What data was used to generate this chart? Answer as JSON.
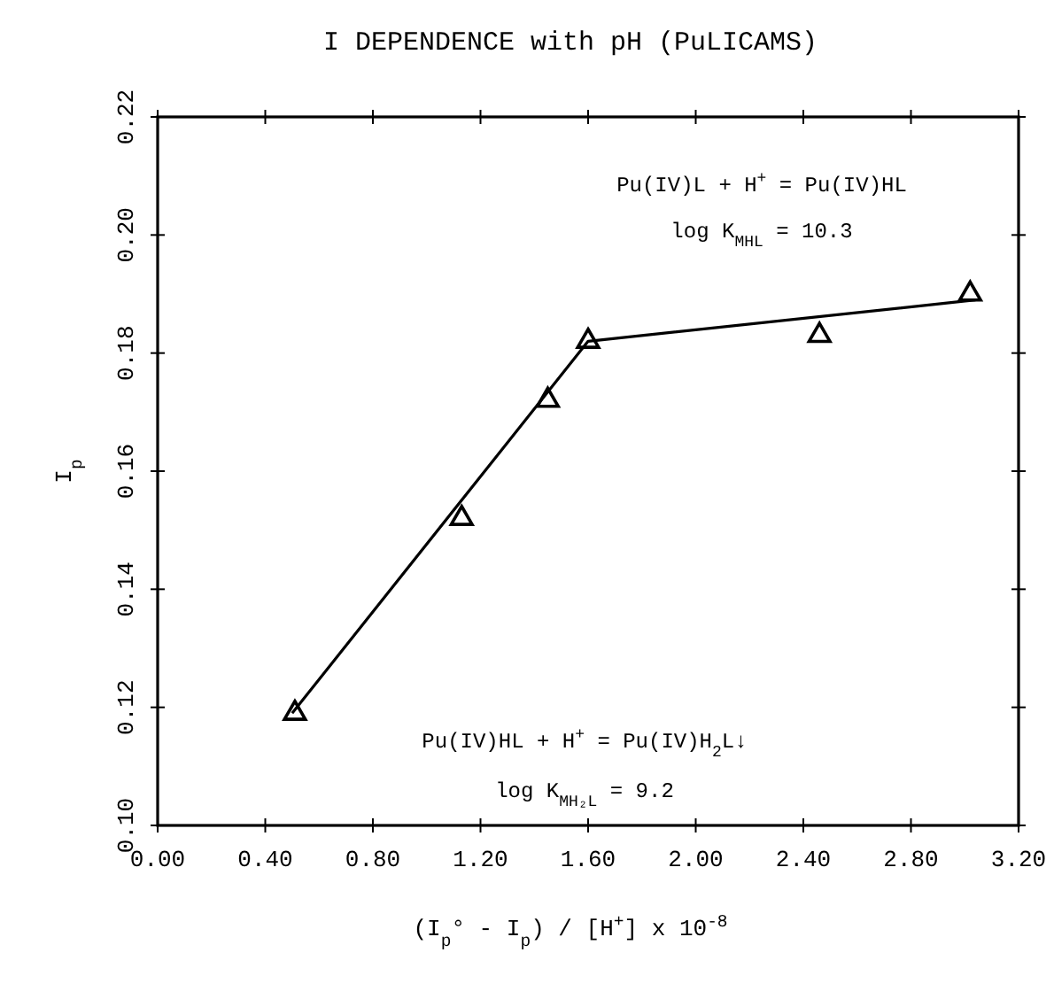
{
  "chart_data": {
    "type": "scatter",
    "title": "I DEPENDENCE with pH (PuLICAMS)",
    "xlabel": "(I$_{p}$° - I$_{p}$) / [H$^{+}$]   x 10$^{-8}$",
    "ylabel": "I$_{p}$",
    "xlim": [
      0,
      3.2
    ],
    "ylim": [
      0.1,
      0.22
    ],
    "xticks": [
      {
        "value": 0,
        "label": "0.00"
      },
      {
        "value": 0.4,
        "label": "0.40"
      },
      {
        "value": 0.8,
        "label": "0.80"
      },
      {
        "value": 1.2,
        "label": "1.20"
      },
      {
        "value": 1.6,
        "label": "1.60"
      },
      {
        "value": 2.0,
        "label": "2.00"
      },
      {
        "value": 2.4,
        "label": "2.40"
      },
      {
        "value": 2.8,
        "label": "2.80"
      },
      {
        "value": 3.2,
        "label": "3.20"
      }
    ],
    "yticks": [
      {
        "value": 0.1,
        "label": "0.10"
      },
      {
        "value": 0.12,
        "label": "0.12"
      },
      {
        "value": 0.14,
        "label": "0.14"
      },
      {
        "value": 0.16,
        "label": "0.16"
      },
      {
        "value": 0.18,
        "label": "0.18"
      },
      {
        "value": 0.2,
        "label": "0.20"
      },
      {
        "value": 0.22,
        "label": "0.22"
      }
    ],
    "series": [
      {
        "color": "#000000",
        "marker": "triangle",
        "x": [
          0.51,
          1.13,
          1.45,
          1.6,
          2.46,
          3.02
        ],
        "values": [
          0.119,
          0.152,
          0.172,
          0.182,
          0.183,
          0.19
        ]
      },
      {
        "type": "line",
        "color": "#000000",
        "marker": "none",
        "line_style": "solid",
        "x": [
          0.5,
          1.6,
          3.04
        ],
        "values": [
          0.119,
          0.182,
          0.189
        ]
      }
    ],
    "annotations": [
      "Pu(IV)L + H$^{+}$ = Pu(IV)HL",
      "log K$_{MHL}$ = 10.3",
      "Pu(IV)HL + H$^{+}$ = Pu(IV)H$_{2}$L↓",
      "log K$_{MH₂L}$ = 9.2"
    ],
    "grid": false
  }
}
